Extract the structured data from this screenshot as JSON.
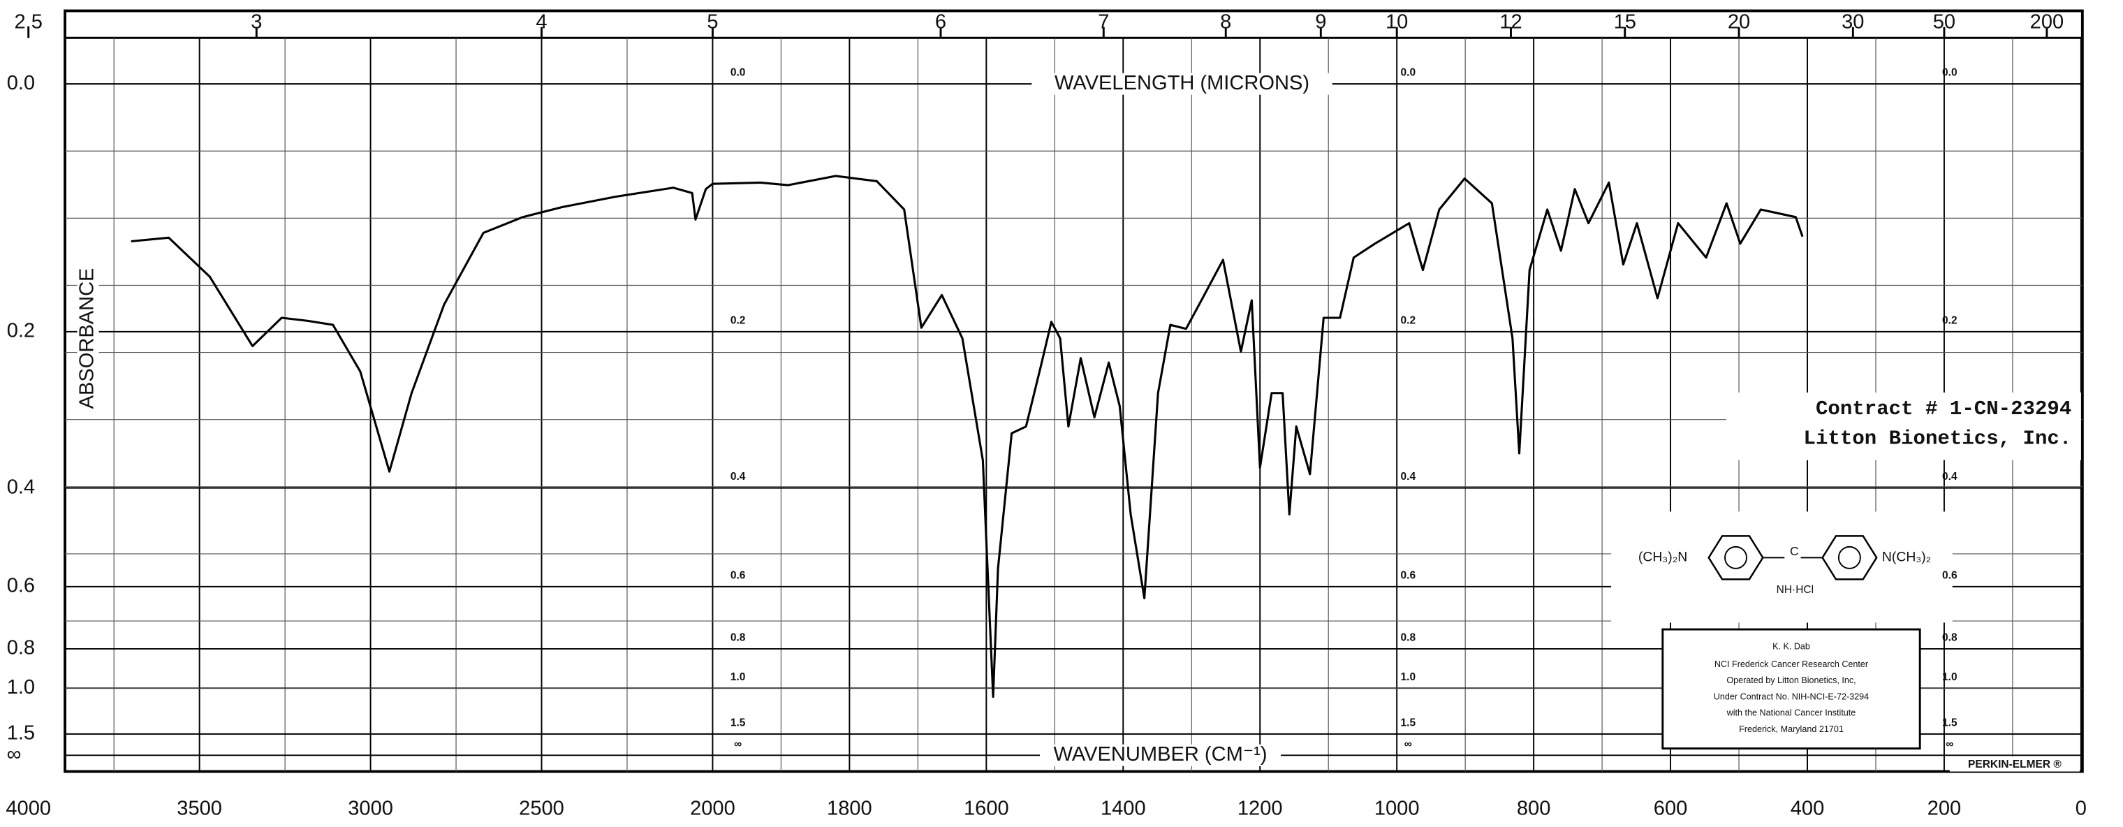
{
  "chart_data": {
    "type": "line",
    "xlabel": "WAVENUMBER (CM⁻¹)",
    "x2label": "WAVELENGTH (MICRONS)",
    "ylabel": "ABSORBANCE",
    "color": "#000000",
    "xlim": [
      4000,
      0
    ],
    "xscale": {
      "break": 2000,
      "ratio": 2
    },
    "xticks": [
      4000,
      3500,
      3000,
      2500,
      2000,
      1800,
      1600,
      1400,
      1200,
      1000,
      800,
      600,
      400,
      200,
      0
    ],
    "x2ticks": [
      2.5,
      3,
      4,
      5,
      6,
      7,
      8,
      9,
      10,
      12,
      15,
      20,
      30,
      50,
      200
    ],
    "yscale": "transmittance",
    "ylim": [
      0,
      null
    ],
    "yticks": [
      {
        "value": 0,
        "label": "0.0"
      },
      0.2,
      0.4,
      0.6,
      0.8,
      {
        "value": 1,
        "label": "1.0"
      },
      1.5,
      {
        "value": null,
        "label": "∞"
      }
    ],
    "grid": true,
    "x": [
      3700,
      3590,
      3470,
      3345,
      3260,
      3185,
      3110,
      3030,
      2945,
      2880,
      2785,
      2670,
      2555,
      2440,
      2285,
      2115,
      2060,
      2050,
      2020,
      2000,
      1930,
      1890,
      1820,
      1760,
      1720,
      1695,
      1665,
      1635,
      1605,
      1590,
      1583,
      1563,
      1542,
      1520,
      1505,
      1492,
      1480,
      1462,
      1442,
      1421,
      1405,
      1389,
      1369,
      1349,
      1331,
      1308,
      1284,
      1254,
      1228,
      1212,
      1200,
      1183,
      1167,
      1157,
      1147,
      1127,
      1107,
      1083,
      1063,
      1032,
      982,
      962,
      938,
      901,
      861,
      831,
      821,
      806,
      780,
      760,
      740,
      720,
      690,
      669,
      649,
      619,
      589,
      548,
      518,
      498,
      468,
      417,
      407
    ],
    "values": [
      0.116,
      0.113,
      0.147,
      0.215,
      0.186,
      0.189,
      0.193,
      0.243,
      0.374,
      0.268,
      0.173,
      0.109,
      0.096,
      0.088,
      0.08,
      0.073,
      0.077,
      0.098,
      0.074,
      0.07,
      0.069,
      0.071,
      0.064,
      0.068,
      0.09,
      0.196,
      0.164,
      0.207,
      0.357,
      1.06,
      0.556,
      0.319,
      0.31,
      0.236,
      0.19,
      0.207,
      0.31,
      0.228,
      0.298,
      0.233,
      0.284,
      0.445,
      0.631,
      0.268,
      0.193,
      0.197,
      0.167,
      0.132,
      0.221,
      0.169,
      0.368,
      0.268,
      0.268,
      0.445,
      0.31,
      0.378,
      0.186,
      0.186,
      0.13,
      0.118,
      0.101,
      0.141,
      0.09,
      0.066,
      0.085,
      0.207,
      0.347,
      0.141,
      0.09,
      0.124,
      0.074,
      0.101,
      0.069,
      0.136,
      0.101,
      0.167,
      0.101,
      0.13,
      0.085,
      0.118,
      0.09,
      0.096,
      0.112
    ],
    "annotations": [
      "Contract # 1-CN-23294",
      "Litton Bionetics, Inc."
    ],
    "structure": [
      "(CH₃)₂N",
      "C",
      "NH·HCl",
      "N(CH₃)₂"
    ],
    "stamp": [
      "K. K. Dab",
      "NCI Frederick Cancer Research Center",
      "Operated by Litton Bionetics, Inc,",
      "Under Contract No. NIH-NCI-E-72-3294",
      "with the National Cancer Institute",
      "Frederick, Maryland 21701"
    ],
    "brand": "PERKIN-ELMER ®"
  }
}
